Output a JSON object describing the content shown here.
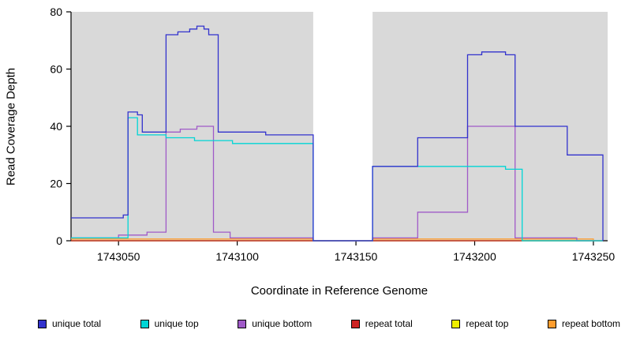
{
  "chart_data": {
    "type": "line",
    "step": true,
    "title": "",
    "xlabel": "Coordinate in Reference Genome",
    "ylabel": "Read Coverage Depth",
    "xlim": [
      1743030,
      1743256
    ],
    "ylim": [
      0,
      80
    ],
    "xticks": [
      1743050,
      1743100,
      1743150,
      1743200,
      1743250
    ],
    "yticks": [
      0,
      20,
      40,
      60,
      80
    ],
    "grid": false,
    "legend_position": "bottom",
    "plot_bg": "#ffffff",
    "shaded_color": "#d9d9d9",
    "background_regions": [
      {
        "x0": 1743030,
        "x1": 1743132
      },
      {
        "x0": 1743157,
        "x1": 1743256
      }
    ],
    "series": [
      {
        "name": "unique total",
        "color": "#3232cd",
        "points": [
          [
            1743030,
            8
          ],
          [
            1743052,
            9
          ],
          [
            1743054,
            45
          ],
          [
            1743058,
            44
          ],
          [
            1743060,
            38
          ],
          [
            1743070,
            72
          ],
          [
            1743075,
            73
          ],
          [
            1743080,
            74
          ],
          [
            1743083,
            75
          ],
          [
            1743086,
            74
          ],
          [
            1743088,
            72
          ],
          [
            1743092,
            38
          ],
          [
            1743112,
            37
          ],
          [
            1743132,
            0
          ],
          [
            1743157,
            26
          ],
          [
            1743176,
            36
          ],
          [
            1743197,
            65
          ],
          [
            1743203,
            66
          ],
          [
            1743213,
            65
          ],
          [
            1743217,
            40
          ],
          [
            1743239,
            30
          ],
          [
            1743254,
            0
          ]
        ]
      },
      {
        "name": "unique top",
        "color": "#00d5d5",
        "points": [
          [
            1743030,
            1
          ],
          [
            1743054,
            43
          ],
          [
            1743058,
            37
          ],
          [
            1743070,
            36
          ],
          [
            1743082,
            35
          ],
          [
            1743098,
            34
          ],
          [
            1743132,
            0
          ],
          [
            1743157,
            26
          ],
          [
            1743213,
            25
          ],
          [
            1743220,
            0
          ],
          [
            1743254,
            0
          ]
        ]
      },
      {
        "name": "unique bottom",
        "color": "#a05ac8",
        "points": [
          [
            1743030,
            1
          ],
          [
            1743050,
            2
          ],
          [
            1743062,
            3
          ],
          [
            1743070,
            38
          ],
          [
            1743076,
            39
          ],
          [
            1743083,
            40
          ],
          [
            1743090,
            3
          ],
          [
            1743097,
            1
          ],
          [
            1743132,
            0
          ],
          [
            1743157,
            1
          ],
          [
            1743176,
            10
          ],
          [
            1743197,
            40
          ],
          [
            1743217,
            1
          ],
          [
            1743243,
            0
          ],
          [
            1743254,
            0
          ]
        ]
      },
      {
        "name": "repeat total",
        "color": "#cd2222",
        "points": [
          [
            1743030,
            0
          ],
          [
            1743254,
            0
          ]
        ]
      },
      {
        "name": "repeat top",
        "color": "#f0f000",
        "points": [
          [
            1743030,
            0
          ],
          [
            1743254,
            0
          ]
        ]
      },
      {
        "name": "repeat bottom",
        "color": "#ff9d2e",
        "points": [
          [
            1743030,
            0.6
          ],
          [
            1743132,
            0
          ],
          [
            1743157,
            0.6
          ],
          [
            1743250,
            0
          ]
        ]
      }
    ]
  }
}
